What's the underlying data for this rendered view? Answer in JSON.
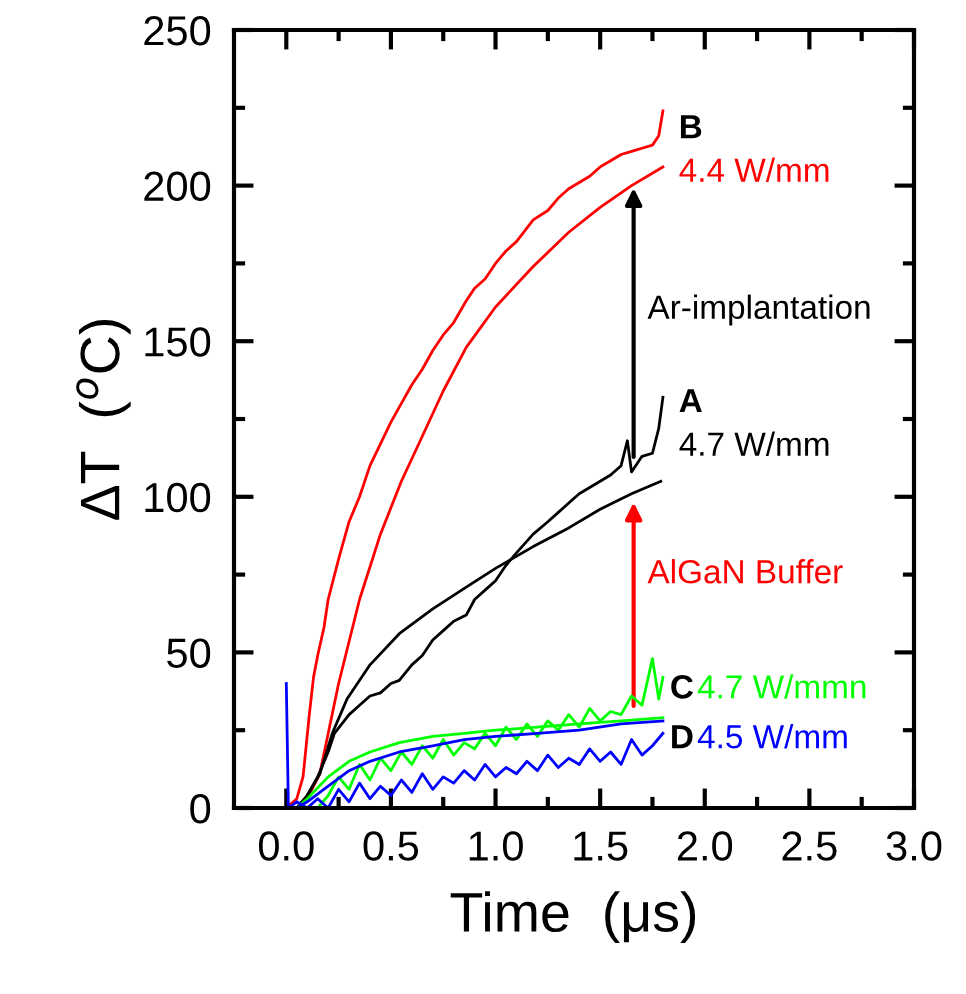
{
  "chart_data": {
    "type": "line",
    "xlabel": "Time  (μs)",
    "ylabel": "ΔT  ($^{o}$C)",
    "xlim": [
      -0.25,
      3.0
    ],
    "ylim": [
      0,
      250
    ],
    "xticks": [
      "0.0",
      {
        "value": 0.25,
        "label": null
      },
      {
        "value": 0.5,
        "label": "0.5"
      },
      {
        "value": 0.75,
        "label": null
      },
      {
        "value": 1.0,
        "label": "1.0"
      },
      {
        "value": 1.25,
        "label": null
      },
      {
        "value": 1.5,
        "label": "1.5"
      },
      {
        "value": 1.75,
        "label": null
      },
      {
        "value": 2.0,
        "label": "2.0"
      },
      {
        "value": 2.25,
        "label": null
      },
      {
        "value": 2.5,
        "label": "2.5"
      },
      {
        "value": 2.75,
        "label": null
      },
      {
        "value": 3.0,
        "label": "3.0"
      }
    ],
    "yticks": [
      0,
      {
        "value": 25,
        "label": null
      },
      50,
      {
        "value": 75,
        "label": null
      },
      100,
      {
        "value": 125,
        "label": null
      },
      150,
      {
        "value": 175,
        "label": null
      },
      200,
      {
        "value": 225,
        "label": null
      },
      250
    ],
    "grid": false,
    "legend": false,
    "marker": "none",
    "line_style": "solid",
    "series": [
      {
        "color": "#ff0000",
        "x": [
          0.0,
          0.05,
          0.08,
          0.11,
          0.13,
          0.15,
          0.18,
          0.2,
          0.25,
          0.3,
          0.35,
          0.4,
          0.45,
          0.5,
          0.55,
          0.6,
          0.65,
          0.7,
          0.75,
          0.8,
          0.86,
          0.9,
          0.95,
          1.0,
          1.05,
          1.1,
          1.18,
          1.25,
          1.3,
          1.35,
          1.4,
          1.45,
          1.5,
          1.55,
          1.6,
          1.65,
          1.7,
          1.75,
          1.78,
          1.8
        ],
        "values": [
          0,
          3,
          10,
          30,
          42,
          49,
          58,
          67,
          80,
          92,
          100,
          110,
          117,
          124,
          130,
          136,
          141,
          147,
          152,
          156,
          163,
          167,
          170,
          175,
          179,
          182,
          189,
          192,
          196,
          199,
          201,
          203,
          206,
          208,
          210,
          211,
          212,
          213,
          216,
          224
        ]
      },
      {
        "color": "#ff0000",
        "x": [
          0.05,
          0.1,
          0.16,
          0.25,
          0.35,
          0.45,
          0.55,
          0.64,
          0.75,
          0.86,
          1.0,
          1.18,
          1.35,
          1.5,
          1.65,
          1.8
        ],
        "values": [
          0,
          3,
          11,
          40,
          67,
          88,
          105,
          118,
          134,
          148,
          161,
          174,
          185,
          193,
          200,
          206
        ]
      },
      {
        "color": "#000000",
        "x": [
          0.05,
          0.1,
          0.15,
          0.2,
          0.23,
          0.3,
          0.35,
          0.4,
          0.45,
          0.5,
          0.54,
          0.6,
          0.65,
          0.7,
          0.75,
          0.8,
          0.86,
          0.9,
          0.95,
          1.0,
          1.05,
          1.1,
          1.18,
          1.25,
          1.3,
          1.35,
          1.4,
          1.45,
          1.5,
          1.55,
          1.6,
          1.63,
          1.65,
          1.7,
          1.75,
          1.78,
          1.8
        ],
        "values": [
          0,
          4,
          10,
          18,
          24,
          30,
          33,
          36,
          37,
          40,
          41,
          46,
          49,
          54,
          57,
          60,
          62,
          67,
          70,
          73,
          78,
          82,
          88,
          92,
          95,
          98,
          101,
          103,
          105,
          107,
          110,
          118,
          108,
          113,
          114,
          122,
          132
        ]
      },
      {
        "color": "#000000",
        "x": [
          0.05,
          0.1,
          0.16,
          0.22,
          0.29,
          0.4,
          0.54,
          0.7,
          0.86,
          1.0,
          1.18,
          1.35,
          1.5,
          1.65,
          1.79
        ],
        "values": [
          0,
          4,
          11,
          24,
          35,
          46,
          56,
          64,
          71,
          77,
          84,
          90,
          96,
          101,
          105
        ]
      },
      {
        "color": "#00ff00",
        "x": [
          0.15,
          0.2,
          0.25,
          0.3,
          0.35,
          0.4,
          0.45,
          0.5,
          0.55,
          0.6,
          0.65,
          0.7,
          0.75,
          0.8,
          0.85,
          0.9,
          0.95,
          1.0,
          1.05,
          1.1,
          1.15,
          1.2,
          1.25,
          1.3,
          1.35,
          1.4,
          1.45,
          1.5,
          1.55,
          1.6,
          1.65,
          1.7,
          1.75,
          1.78,
          1.8
        ],
        "values": [
          0,
          4,
          10,
          6,
          14,
          9,
          16,
          12,
          18,
          14,
          20,
          16,
          22,
          17,
          21,
          19,
          24,
          20,
          26,
          22,
          27,
          23,
          28,
          25,
          30,
          26,
          32,
          28,
          31,
          30,
          36,
          33,
          48,
          35,
          42
        ]
      },
      {
        "color": "#00ff00",
        "x": [
          0.05,
          0.1,
          0.2,
          0.3,
          0.4,
          0.54,
          0.7,
          0.85,
          1.0,
          1.2,
          1.4,
          1.6,
          1.8
        ],
        "values": [
          0,
          3,
          10,
          15,
          18,
          21,
          23,
          24,
          25,
          26,
          27,
          28,
          29
        ]
      },
      {
        "color": "#0000ff",
        "x": [
          0.0,
          0.01,
          0.05,
          0.1,
          0.15,
          0.2,
          0.25,
          0.3,
          0.35,
          0.4,
          0.45,
          0.5,
          0.55,
          0.6,
          0.65,
          0.7,
          0.75,
          0.8,
          0.85,
          0.9,
          0.95,
          1.0,
          1.05,
          1.1,
          1.15,
          1.2,
          1.25,
          1.3,
          1.35,
          1.4,
          1.45,
          1.5,
          1.55,
          1.6,
          1.65,
          1.7,
          1.75,
          1.8
        ],
        "values": [
          40,
          0,
          2,
          0,
          3,
          0,
          6,
          2,
          8,
          3,
          7,
          4,
          9,
          5,
          11,
          6,
          10,
          8,
          12,
          9,
          14,
          10,
          13,
          11,
          15,
          12,
          17,
          13,
          16,
          14,
          19,
          15,
          18,
          14,
          22,
          17,
          20,
          24
        ]
      },
      {
        "color": "#0000ff",
        "x": [
          0.05,
          0.1,
          0.2,
          0.3,
          0.4,
          0.54,
          0.7,
          0.85,
          1.0,
          1.2,
          1.4,
          1.6,
          1.8
        ],
        "values": [
          0,
          2,
          7,
          12,
          15,
          18,
          20,
          22,
          23,
          24,
          25,
          27,
          28
        ]
      }
    ],
    "annotations": [
      "B",
      "4.4 W/mm",
      "Ar-implantation",
      "A",
      "4.7 W/mm",
      "AlGaN Buffer",
      "C",
      "4.7 W/mmn",
      "D",
      "4.5 W/mm"
    ]
  }
}
